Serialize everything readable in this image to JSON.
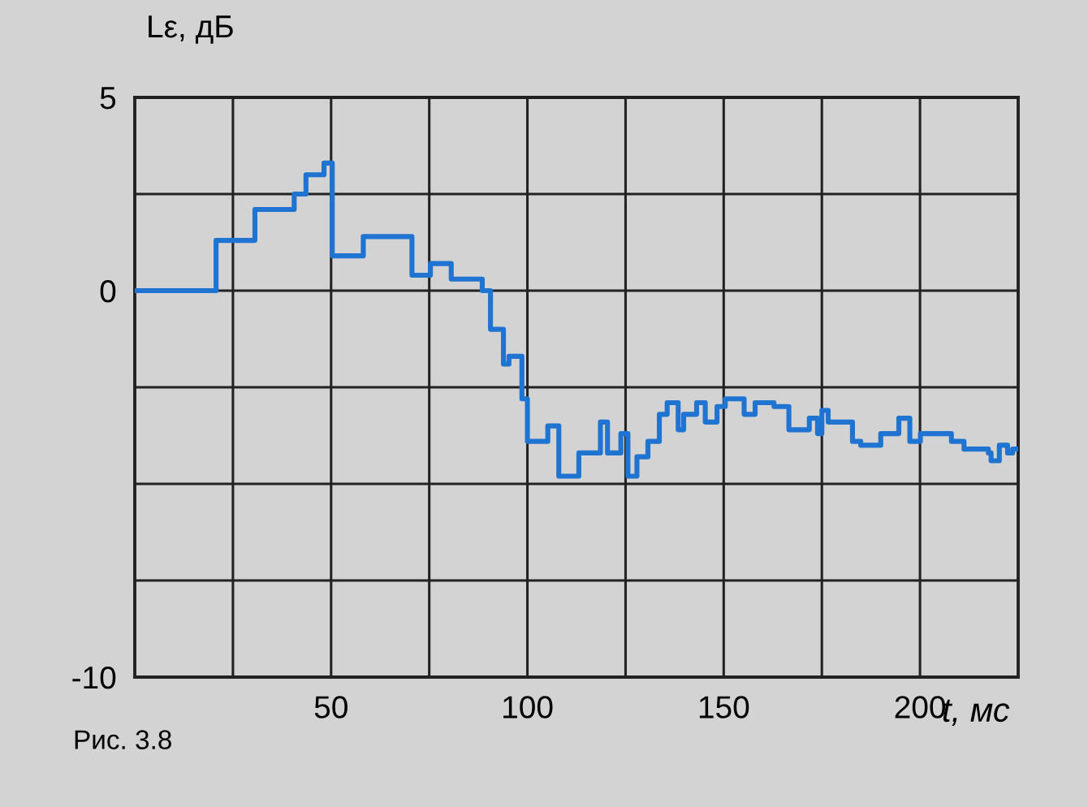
{
  "chart_data": {
    "type": "step",
    "ylabel": "Lε, дБ",
    "xlabel": "t, мс",
    "annotations": [
      "Рис. 3.8"
    ],
    "x": [
      0,
      20.7,
      30.6,
      40.6,
      43.6,
      48.2,
      50.3,
      58.2,
      70.6,
      75.3,
      80.6,
      88.5,
      90.6,
      93.9,
      95.3,
      98.6,
      100,
      105.2,
      108,
      113.1,
      118.6,
      120.4,
      123.8,
      125.6,
      127.9,
      130.7,
      133.6,
      135.6,
      138.4,
      139.8,
      143.1,
      145.3,
      148.3,
      150.4,
      155.2,
      158,
      162.8,
      166.6,
      171.8,
      173.9,
      175,
      176.6,
      182.8,
      184.9,
      190,
      194.6,
      197.4,
      200.1,
      208,
      211.2,
      217.4,
      218.1,
      220.2,
      222.3,
      223.6,
      225
    ],
    "series": [
      {
        "color": "#1f74d2",
        "values": [
          0,
          1.3,
          2.1,
          2.5,
          3.0,
          3.3,
          0.9,
          1.4,
          0.4,
          0.7,
          0.3,
          0,
          -1.0,
          -1.9,
          -1.7,
          -2.8,
          -3.9,
          -3.5,
          -4.8,
          -4.2,
          -3.4,
          -4.2,
          -3.7,
          -4.8,
          -4.3,
          -3.9,
          -3.2,
          -2.9,
          -3.6,
          -3.2,
          -2.9,
          -3.4,
          -3.0,
          -2.8,
          -3.2,
          -2.9,
          -3.0,
          -3.6,
          -3.3,
          -3.7,
          -3.1,
          -3.4,
          -3.9,
          -4.0,
          -3.7,
          -3.3,
          -3.9,
          -3.7,
          -3.9,
          -4.1,
          -4.2,
          -4.4,
          -4.0,
          -4.2,
          -4.1,
          -4.1
        ]
      }
    ],
    "xlim": [
      0,
      225
    ],
    "ylim": [
      -10,
      5
    ],
    "xticks": [
      {
        "value": 25,
        "label": null
      },
      50,
      {
        "value": 75,
        "label": null
      },
      100,
      {
        "value": 125,
        "label": null
      },
      150,
      {
        "value": 175,
        "label": null
      },
      200
    ],
    "yticks": [
      -10,
      {
        "value": -7.5,
        "label": null
      },
      {
        "value": -5,
        "label": null
      },
      {
        "value": -2.5,
        "label": null
      },
      0,
      {
        "value": 2.5,
        "label": null
      },
      5
    ],
    "grid": true,
    "legend": false,
    "line_style": "solid",
    "marker": "none"
  }
}
